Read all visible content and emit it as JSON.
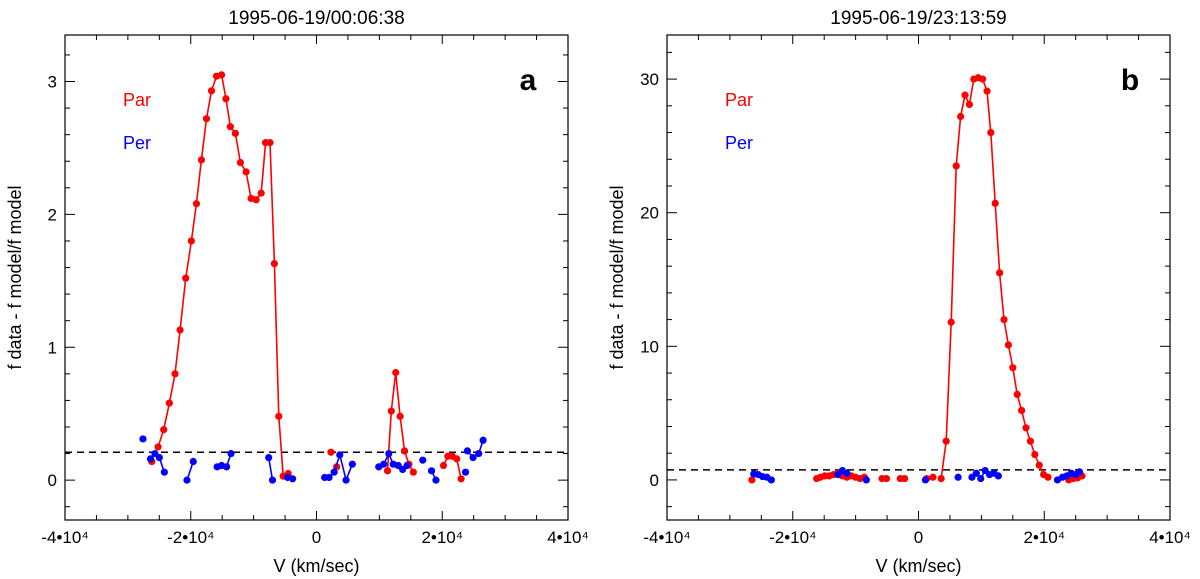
{
  "chart_data": [
    {
      "type": "line",
      "panel_label": "a",
      "title": "1995-06-19/00:06:38",
      "xlabel": "V (km/sec)",
      "ylabel": "f data - f model/f model",
      "xlim": [
        -40000,
        40000
      ],
      "ylim": [
        -0.3,
        3.35
      ],
      "xticks": [
        -40000,
        -20000,
        0,
        20000,
        40000
      ],
      "xtick_labels": [
        "-4•10⁴",
        "-2•10⁴",
        "0",
        "2•10⁴",
        "4•10⁴"
      ],
      "yticks": [
        0,
        1,
        2,
        3
      ],
      "ytick_labels": [
        "0",
        "1",
        "2",
        "3"
      ],
      "reference_line": 0.21,
      "legend": [
        {
          "label": "Par",
          "color": "#ff0000"
        },
        {
          "label": "Per",
          "color": "#0000ff"
        }
      ],
      "series": [
        {
          "name": "Par",
          "color": "#ff0000",
          "segments": [
            [
              [
                -25200,
                0.25
              ],
              [
                -24300,
                0.38
              ],
              [
                -23400,
                0.58
              ],
              [
                -22500,
                0.8
              ],
              [
                -21700,
                1.13
              ],
              [
                -20800,
                1.52
              ],
              [
                -19900,
                1.8
              ],
              [
                -19100,
                2.08
              ],
              [
                -18300,
                2.41
              ],
              [
                -17500,
                2.72
              ],
              [
                -16700,
                2.93
              ],
              [
                -15900,
                3.04
              ],
              [
                -15100,
                3.05
              ],
              [
                -14400,
                2.87
              ],
              [
                -13700,
                2.66
              ],
              [
                -12900,
                2.61
              ],
              [
                -12100,
                2.39
              ],
              [
                -11200,
                2.32
              ],
              [
                -10400,
                2.12
              ],
              [
                -9600,
                2.11
              ],
              [
                -8800,
                2.16
              ],
              [
                -8100,
                2.54
              ],
              [
                -7400,
                2.54
              ],
              [
                -6700,
                1.63
              ],
              [
                -6000,
                0.48
              ],
              [
                -5300,
                0.03
              ],
              [
                -4500,
                0.05
              ]
            ],
            [
              [
                11300,
                0.07
              ],
              [
                11900,
                0.52
              ],
              [
                12600,
                0.81
              ],
              [
                13300,
                0.48
              ],
              [
                14000,
                0.22
              ],
              [
                14700,
                0.12
              ],
              [
                15400,
                0.06
              ]
            ],
            [
              [
                20200,
                0.11
              ],
              [
                20900,
                0.18
              ],
              [
                21600,
                0.18
              ],
              [
                22300,
                0.16
              ],
              [
                23000,
                0.01
              ]
            ]
          ],
          "points": [
            [
              -26200,
              0.14
            ],
            [
              2300,
              0.21
            ],
            [
              3200,
              0.1
            ]
          ]
        },
        {
          "name": "Per",
          "color": "#0000ff",
          "segments": [
            [
              [
                -26400,
                0.16
              ],
              [
                -25700,
                0.2
              ],
              [
                -25000,
                0.17
              ],
              [
                -24200,
                0.06
              ]
            ],
            [
              [
                -20600,
                0.0
              ],
              [
                -19600,
                0.14
              ]
            ],
            [
              [
                -15800,
                0.1
              ],
              [
                -15100,
                0.11
              ],
              [
                -14300,
                0.1
              ],
              [
                -13600,
                0.2
              ]
            ],
            [
              [
                -7600,
                0.17
              ],
              [
                -7000,
                0.0
              ]
            ],
            [
              [
                -4600,
                0.02
              ],
              [
                -3800,
                0.01
              ]
            ],
            [
              [
                1300,
                0.02
              ],
              [
                2000,
                0.02
              ],
              [
                2800,
                0.06
              ],
              [
                3700,
                0.19
              ],
              [
                4700,
                0.0
              ],
              [
                5700,
                0.12
              ]
            ],
            [
              [
                9900,
                0.1
              ],
              [
                10700,
                0.12
              ],
              [
                11500,
                0.2
              ],
              [
                12200,
                0.12
              ],
              [
                13000,
                0.11
              ],
              [
                13700,
                0.08
              ],
              [
                14400,
                0.11
              ]
            ],
            [
              [
                18300,
                0.07
              ],
              [
                19000,
                0.0
              ]
            ],
            [
              [
                24000,
                0.22
              ],
              [
                24900,
                0.17
              ],
              [
                25800,
                0.2
              ],
              [
                26500,
                0.3
              ]
            ]
          ],
          "points": [
            [
              -27600,
              0.31
            ],
            [
              16900,
              0.15
            ],
            [
              23700,
              0.06
            ]
          ]
        }
      ]
    },
    {
      "type": "line",
      "panel_label": "b",
      "title": "1995-06-19/23:13:59",
      "xlabel": "V (km/sec)",
      "ylabel": "f data - f model/f model",
      "xlim": [
        -40000,
        40000
      ],
      "ylim": [
        -3,
        33.3
      ],
      "xticks": [
        -40000,
        -20000,
        0,
        20000,
        40000
      ],
      "xtick_labels": [
        "-4•10⁴",
        "-2•10⁴",
        "0",
        "2•10⁴",
        "4•10⁴"
      ],
      "yticks": [
        0,
        10,
        20,
        30
      ],
      "ytick_labels": [
        "0",
        "10",
        "20",
        "30"
      ],
      "reference_line": 0.75,
      "legend": [
        {
          "label": "Par",
          "color": "#ff0000"
        },
        {
          "label": "Per",
          "color": "#0000ff"
        }
      ],
      "series": [
        {
          "name": "Par",
          "color": "#ff0000",
          "segments": [
            [
              [
                -16200,
                0.1
              ],
              [
                -15600,
                0.2
              ],
              [
                -14900,
                0.3
              ],
              [
                -14200,
                0.3
              ],
              [
                -13500,
                0.4
              ],
              [
                -12800,
                0.5
              ],
              [
                -12100,
                0.3
              ],
              [
                -11400,
                0.2
              ],
              [
                -10700,
                0.3
              ],
              [
                -10000,
                0.2
              ],
              [
                -9300,
                0.1
              ],
              [
                -8600,
                0.2
              ]
            ],
            [
              [
                -5800,
                0.1
              ],
              [
                -5100,
                0.1
              ]
            ],
            [
              [
                -2900,
                0.1
              ],
              [
                -2200,
                0.1
              ]
            ],
            [
              [
                1300,
                0.1
              ],
              [
                2300,
                0.2
              ]
            ],
            [
              [
                3600,
                0.1
              ],
              [
                4400,
                2.9
              ],
              [
                5200,
                11.8
              ],
              [
                6000,
                23.5
              ],
              [
                6700,
                27.2
              ],
              [
                7400,
                28.8
              ],
              [
                8100,
                28.1
              ],
              [
                8800,
                30.0
              ],
              [
                9500,
                30.1
              ],
              [
                10200,
                30.0
              ],
              [
                10900,
                29.1
              ],
              [
                11500,
                26.0
              ],
              [
                12200,
                20.7
              ],
              [
                12900,
                15.5
              ],
              [
                13600,
                12.0
              ],
              [
                14300,
                10.1
              ],
              [
                15000,
                8.4
              ],
              [
                15700,
                6.4
              ],
              [
                16400,
                5.2
              ],
              [
                17100,
                3.9
              ],
              [
                17800,
                2.9
              ],
              [
                18500,
                1.9
              ],
              [
                19200,
                1.1
              ],
              [
                19900,
                0.4
              ],
              [
                20600,
                0.2
              ]
            ],
            [
              [
                23900,
                0.0
              ],
              [
                24600,
                0.1
              ],
              [
                25300,
                0.15
              ],
              [
                26000,
                0.3
              ]
            ]
          ],
          "points": [
            [
              -26500,
              0.0
            ]
          ]
        },
        {
          "name": "Per",
          "color": "#0000ff",
          "segments": [
            [
              [
                -26200,
                0.45
              ],
              [
                -25500,
                0.4
              ],
              [
                -24800,
                0.25
              ],
              [
                -24100,
                0.2
              ],
              [
                -23400,
                0.0
              ]
            ],
            [
              [
                -12800,
                0.4
              ],
              [
                -12100,
                0.7
              ],
              [
                -11400,
                0.5
              ]
            ],
            [
              [
                8500,
                0.2
              ],
              [
                9200,
                0.5
              ],
              [
                9900,
                0.1
              ],
              [
                10600,
                0.7
              ],
              [
                11300,
                0.4
              ],
              [
                12000,
                0.5
              ],
              [
                12700,
                0.3
              ]
            ],
            [
              [
                22100,
                0.0
              ],
              [
                22900,
                0.2
              ],
              [
                23600,
                0.3
              ],
              [
                24300,
                0.5
              ],
              [
                25000,
                0.4
              ],
              [
                25600,
                0.6
              ]
            ]
          ],
          "points": [
            [
              -8300,
              0.0
            ],
            [
              1100,
              0.0
            ],
            [
              6300,
              0.2
            ]
          ]
        }
      ]
    }
  ]
}
